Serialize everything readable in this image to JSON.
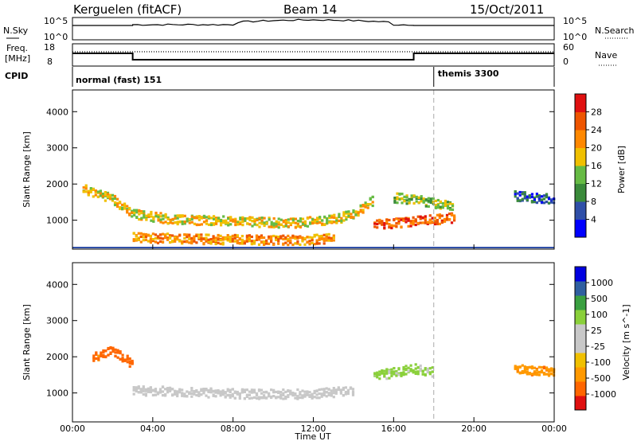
{
  "header": {
    "radar": "Kerguelen (fitACF)",
    "beam": "Beam 14",
    "date": "15/Oct/2011"
  },
  "nsky_panel": {
    "label": "N.Sky",
    "right_label": "N.Search",
    "left_ticks": [
      "10^5",
      "10^0"
    ],
    "right_ticks": [
      "10^5",
      "10^0"
    ]
  },
  "freq_panel": {
    "label_line1": "Freq.",
    "label_line2": "[MHz]",
    "right_label": "Nave",
    "left_ticks": [
      "18",
      "8"
    ],
    "right_ticks": [
      "60",
      "0"
    ]
  },
  "cpid": {
    "label": "CPID",
    "modes": [
      {
        "name": "normal (fast) 151",
        "start_hour": 0
      },
      {
        "name": "themis 3300",
        "start_hour": 18
      }
    ]
  },
  "x_axis": {
    "label": "Time UT",
    "ticks": [
      "00:00",
      "04:00",
      "08:00",
      "12:00",
      "16:00",
      "20:00",
      "00:00"
    ]
  },
  "colors": {
    "power": [
      "#0000ff",
      "#2f4fa8",
      "#3a8a3a",
      "#66bb44",
      "#f0c000",
      "#ff8800",
      "#ee5500",
      "#e01010"
    ],
    "velocity": [
      "#e01010",
      "#ff6600",
      "#ff9900",
      "#f0c000",
      "#c8c8c8",
      "#c8c8c8",
      "#8ad03a",
      "#3aa040",
      "#2f5fa0",
      "#0000e0"
    ]
  },
  "chart_data": [
    {
      "type": "heatmap",
      "title": "Power",
      "ylabel": "Slant Range [km]",
      "xlabel": "",
      "xlim_hours": [
        0,
        24
      ],
      "ylim": [
        200,
        4600
      ],
      "yticks": [
        1000,
        2000,
        3000,
        4000
      ],
      "colorbar": {
        "label": "Power [dB]",
        "ticks": [
          "4",
          "8",
          "12",
          "16",
          "20",
          "24",
          "28"
        ]
      },
      "features": [
        {
          "name": "main scatter band",
          "t": [
            0.5,
            2,
            3,
            5,
            8,
            11,
            13,
            14,
            15
          ],
          "range_km": [
            1900,
            1600,
            1200,
            1050,
            1000,
            950,
            1050,
            1200,
            1600
          ],
          "level": 20
        },
        {
          "name": "near-range echoes",
          "t": [
            3,
            7,
            11,
            13
          ],
          "range_km": [
            550,
            500,
            480,
            520
          ],
          "level": 24
        },
        {
          "name": "post-16UT band",
          "t": [
            15,
            16,
            17,
            18,
            19
          ],
          "range_km": [
            900,
            950,
            1000,
            1050,
            1100
          ],
          "level": 28
        },
        {
          "name": "upper band",
          "t": [
            16,
            17,
            18,
            19
          ],
          "range_km": [
            1650,
            1600,
            1500,
            1400
          ],
          "level": 16
        },
        {
          "name": "late echoes",
          "t": [
            22,
            23,
            24
          ],
          "range_km": [
            1700,
            1650,
            1600
          ],
          "level": 8
        }
      ]
    },
    {
      "type": "heatmap",
      "title": "Velocity",
      "ylabel": "Slant Range [km]",
      "xlabel": "Time UT",
      "xlim_hours": [
        0,
        24
      ],
      "ylim": [
        200,
        4600
      ],
      "yticks": [
        1000,
        2000,
        3000,
        4000
      ],
      "colorbar": {
        "label": "Velocity [m s^-1]",
        "ticks": [
          "1000",
          "500",
          "100",
          "25",
          "-25",
          "-100",
          "-500",
          "-1000"
        ]
      },
      "features": [
        {
          "name": "ground scatter",
          "t": [
            3,
            6,
            9,
            12,
            14
          ],
          "range_km": [
            1100,
            1050,
            1000,
            1000,
            1100
          ],
          "velocity": 0
        },
        {
          "name": "early ionospheric",
          "t": [
            1,
            2,
            3
          ],
          "range_km": [
            2000,
            2200,
            1800
          ],
          "velocity": -300
        },
        {
          "name": "afternoon ionospheric",
          "t": [
            15,
            16,
            17,
            18
          ],
          "range_km": [
            1500,
            1600,
            1700,
            1600
          ],
          "velocity": 100
        },
        {
          "name": "late echoes",
          "t": [
            22,
            23,
            24
          ],
          "range_km": [
            1700,
            1650,
            1600
          ],
          "velocity": -200
        }
      ]
    }
  ]
}
